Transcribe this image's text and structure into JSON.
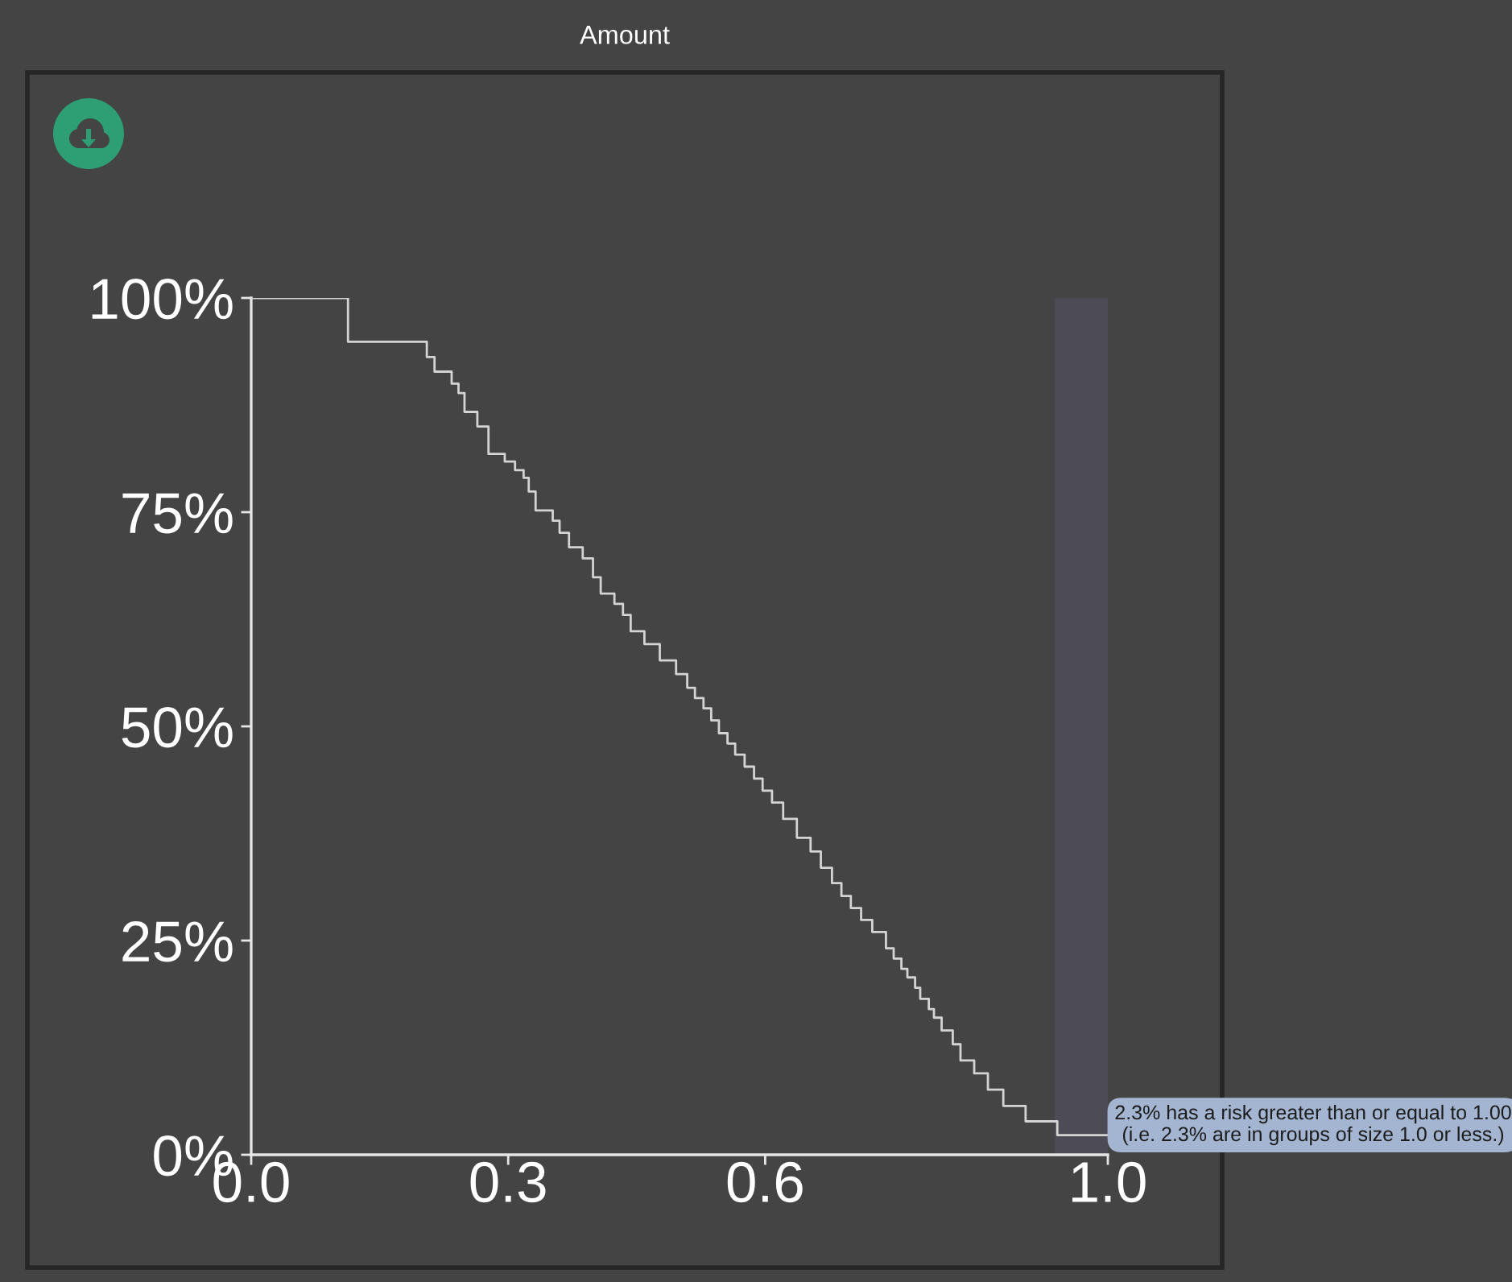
{
  "chart_data": {
    "type": "step",
    "title": "Amount",
    "x": [
      0,
      0.113,
      0.205,
      0.214,
      0.234,
      0.242,
      0.249,
      0.264,
      0.277,
      0.296,
      0.308,
      0.318,
      0.324,
      0.332,
      0.352,
      0.36,
      0.371,
      0.387,
      0.399,
      0.408,
      0.424,
      0.434,
      0.443,
      0.459,
      0.477,
      0.496,
      0.509,
      0.518,
      0.528,
      0.537,
      0.546,
      0.556,
      0.565,
      0.576,
      0.587,
      0.597,
      0.608,
      0.621,
      0.637,
      0.653,
      0.665,
      0.678,
      0.689,
      0.7,
      0.712,
      0.725,
      0.741,
      0.75,
      0.759,
      0.766,
      0.775,
      0.781,
      0.791,
      0.797,
      0.806,
      0.819,
      0.828,
      0.844,
      0.86,
      0.878,
      0.904,
      0.941,
      1.0
    ],
    "values": [
      100,
      94.9,
      93.1,
      91.4,
      90.0,
      88.9,
      86.7,
      85.0,
      81.8,
      80.9,
      79.9,
      79.0,
      77.4,
      75.2,
      74.0,
      72.6,
      70.9,
      69.6,
      67.4,
      65.5,
      64.3,
      63.0,
      61.1,
      59.6,
      57.7,
      56.1,
      54.5,
      53.3,
      52.1,
      50.7,
      49.2,
      48.0,
      46.7,
      45.3,
      43.9,
      42.5,
      41.1,
      39.2,
      37.0,
      35.4,
      33.5,
      31.7,
      30.2,
      28.8,
      27.4,
      26.0,
      24.1,
      22.9,
      21.7,
      20.7,
      19.5,
      18.2,
      17.0,
      16.0,
      14.5,
      12.9,
      11.0,
      9.5,
      7.6,
      5.7,
      3.9,
      2.3,
      2.3
    ],
    "color": "#d4d4d4",
    "xlim": [
      0,
      1
    ],
    "xticks": [
      {
        "value": 0,
        "label": "0.0"
      },
      {
        "value": 0.3,
        "label": "0.3"
      },
      {
        "value": 0.6,
        "label": "0.6"
      },
      {
        "value": 1,
        "label": "1.0"
      }
    ],
    "ylim": [
      0,
      100
    ],
    "yticks": [
      {
        "value": 0,
        "label": "0%"
      },
      {
        "value": 25,
        "label": "25%"
      },
      {
        "value": 50,
        "label": "50%"
      },
      {
        "value": 75,
        "label": "75%"
      },
      {
        "value": 100,
        "label": "100%"
      }
    ],
    "bands": [
      {
        "axis": "x",
        "from": 0.938,
        "to": 1.0,
        "color": "#4d4b55"
      }
    ],
    "annotations": [
      {
        "text": "2.3% has a risk greater than or equal to 1.00\n(i.e. 2.3% are in groups of size 1.0 or less.)",
        "x": 1.0,
        "y": 2.3
      }
    ]
  }
}
